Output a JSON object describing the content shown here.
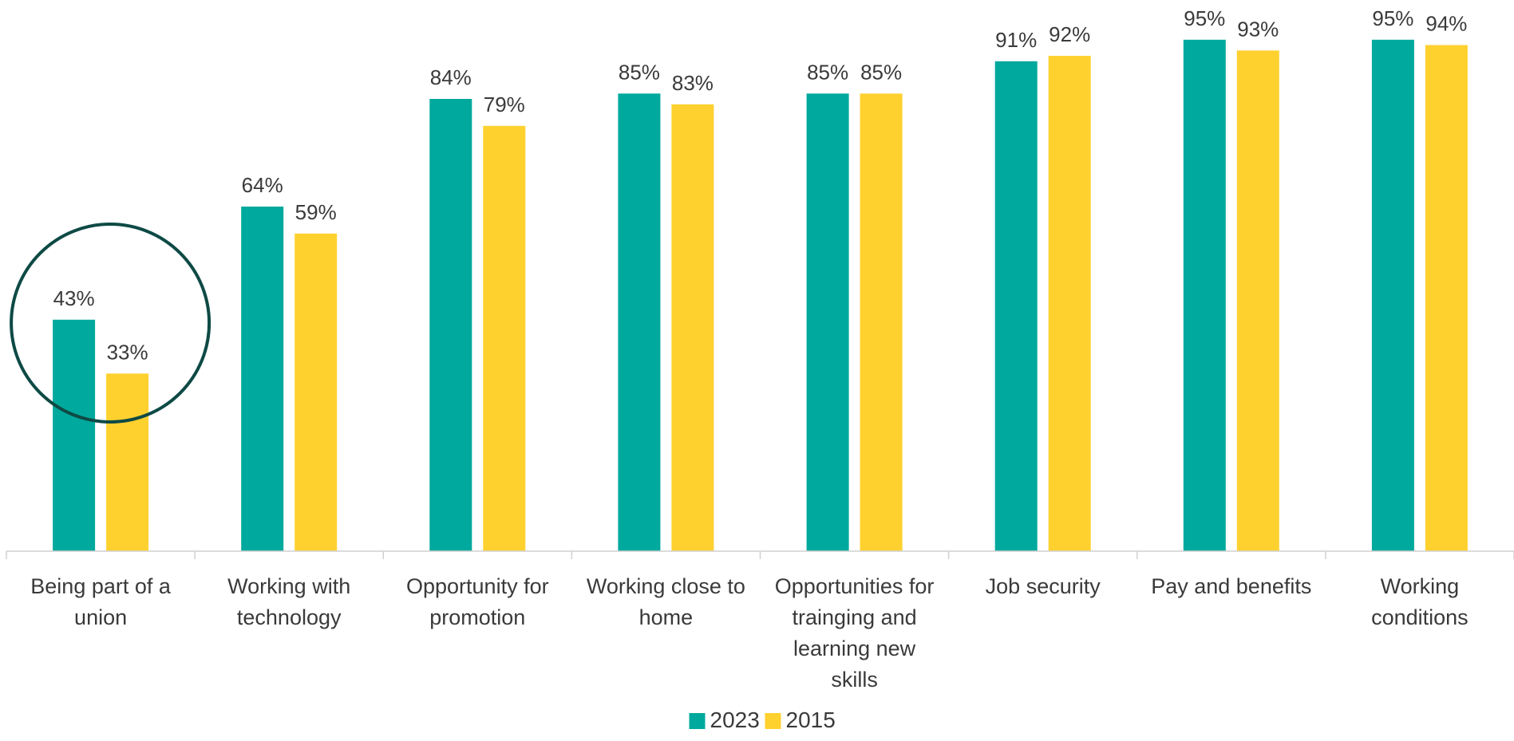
{
  "chart_data": {
    "type": "bar",
    "categories": [
      [
        "Being part of a",
        "union"
      ],
      [
        "Working with",
        "technology"
      ],
      [
        "Opportunity for",
        "promotion"
      ],
      [
        "Working close to",
        "home"
      ],
      [
        "Opportunities for",
        "trainging and",
        "learning new",
        "skills"
      ],
      [
        "Job security"
      ],
      [
        "Pay and benefits"
      ],
      [
        "Working",
        "conditions"
      ]
    ],
    "series": [
      {
        "name": "2023",
        "color": "#00A99D",
        "values": [
          43,
          64,
          84,
          85,
          85,
          91,
          95,
          95
        ],
        "labels": [
          "43%",
          "64%",
          "84%",
          "85%",
          "85%",
          "91%",
          "95%",
          "95%"
        ]
      },
      {
        "name": "2015",
        "color": "#FFD12F",
        "values": [
          33,
          59,
          79,
          83,
          85,
          92,
          93,
          94
        ],
        "labels": [
          "33%",
          "59%",
          "79%",
          "83%",
          "85%",
          "92%",
          "93%",
          "94%"
        ]
      }
    ],
    "ylim": [
      0,
      100
    ],
    "grid": false,
    "legend_position": "bottom-center",
    "highlight": {
      "category_index": 0,
      "shape": "circle",
      "color": "#0E4A45"
    }
  }
}
